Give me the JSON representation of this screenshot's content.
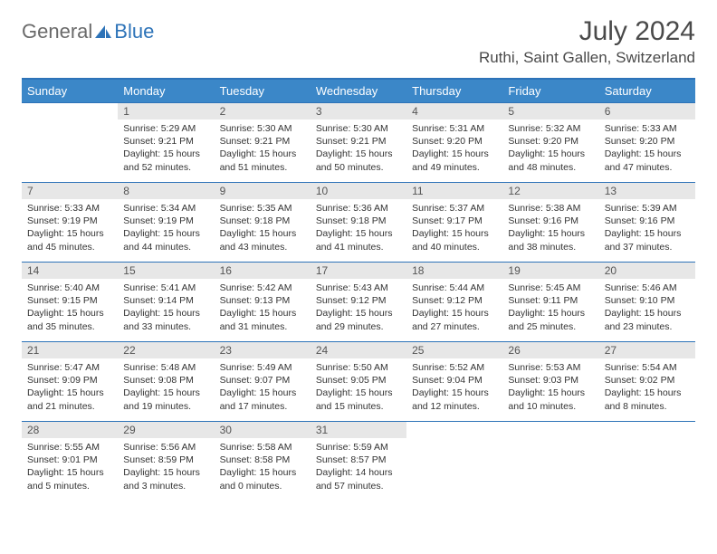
{
  "logo": {
    "part1": "General",
    "part2": "Blue"
  },
  "title": "July 2024",
  "location": "Ruthi, Saint Gallen, Switzerland",
  "day_headers": [
    "Sunday",
    "Monday",
    "Tuesday",
    "Wednesday",
    "Thursday",
    "Friday",
    "Saturday"
  ],
  "colors": {
    "header_bg": "#3b87c8",
    "header_border": "#2d73b8",
    "text": "#333333",
    "daynum_bg": "#e7e7e7"
  },
  "weeks": [
    [
      {
        "n": "",
        "sunrise": "",
        "sunset": "",
        "daylight": ""
      },
      {
        "n": "1",
        "sunrise": "Sunrise: 5:29 AM",
        "sunset": "Sunset: 9:21 PM",
        "daylight": "Daylight: 15 hours and 52 minutes."
      },
      {
        "n": "2",
        "sunrise": "Sunrise: 5:30 AM",
        "sunset": "Sunset: 9:21 PM",
        "daylight": "Daylight: 15 hours and 51 minutes."
      },
      {
        "n": "3",
        "sunrise": "Sunrise: 5:30 AM",
        "sunset": "Sunset: 9:21 PM",
        "daylight": "Daylight: 15 hours and 50 minutes."
      },
      {
        "n": "4",
        "sunrise": "Sunrise: 5:31 AM",
        "sunset": "Sunset: 9:20 PM",
        "daylight": "Daylight: 15 hours and 49 minutes."
      },
      {
        "n": "5",
        "sunrise": "Sunrise: 5:32 AM",
        "sunset": "Sunset: 9:20 PM",
        "daylight": "Daylight: 15 hours and 48 minutes."
      },
      {
        "n": "6",
        "sunrise": "Sunrise: 5:33 AM",
        "sunset": "Sunset: 9:20 PM",
        "daylight": "Daylight: 15 hours and 47 minutes."
      }
    ],
    [
      {
        "n": "7",
        "sunrise": "Sunrise: 5:33 AM",
        "sunset": "Sunset: 9:19 PM",
        "daylight": "Daylight: 15 hours and 45 minutes."
      },
      {
        "n": "8",
        "sunrise": "Sunrise: 5:34 AM",
        "sunset": "Sunset: 9:19 PM",
        "daylight": "Daylight: 15 hours and 44 minutes."
      },
      {
        "n": "9",
        "sunrise": "Sunrise: 5:35 AM",
        "sunset": "Sunset: 9:18 PM",
        "daylight": "Daylight: 15 hours and 43 minutes."
      },
      {
        "n": "10",
        "sunrise": "Sunrise: 5:36 AM",
        "sunset": "Sunset: 9:18 PM",
        "daylight": "Daylight: 15 hours and 41 minutes."
      },
      {
        "n": "11",
        "sunrise": "Sunrise: 5:37 AM",
        "sunset": "Sunset: 9:17 PM",
        "daylight": "Daylight: 15 hours and 40 minutes."
      },
      {
        "n": "12",
        "sunrise": "Sunrise: 5:38 AM",
        "sunset": "Sunset: 9:16 PM",
        "daylight": "Daylight: 15 hours and 38 minutes."
      },
      {
        "n": "13",
        "sunrise": "Sunrise: 5:39 AM",
        "sunset": "Sunset: 9:16 PM",
        "daylight": "Daylight: 15 hours and 37 minutes."
      }
    ],
    [
      {
        "n": "14",
        "sunrise": "Sunrise: 5:40 AM",
        "sunset": "Sunset: 9:15 PM",
        "daylight": "Daylight: 15 hours and 35 minutes."
      },
      {
        "n": "15",
        "sunrise": "Sunrise: 5:41 AM",
        "sunset": "Sunset: 9:14 PM",
        "daylight": "Daylight: 15 hours and 33 minutes."
      },
      {
        "n": "16",
        "sunrise": "Sunrise: 5:42 AM",
        "sunset": "Sunset: 9:13 PM",
        "daylight": "Daylight: 15 hours and 31 minutes."
      },
      {
        "n": "17",
        "sunrise": "Sunrise: 5:43 AM",
        "sunset": "Sunset: 9:12 PM",
        "daylight": "Daylight: 15 hours and 29 minutes."
      },
      {
        "n": "18",
        "sunrise": "Sunrise: 5:44 AM",
        "sunset": "Sunset: 9:12 PM",
        "daylight": "Daylight: 15 hours and 27 minutes."
      },
      {
        "n": "19",
        "sunrise": "Sunrise: 5:45 AM",
        "sunset": "Sunset: 9:11 PM",
        "daylight": "Daylight: 15 hours and 25 minutes."
      },
      {
        "n": "20",
        "sunrise": "Sunrise: 5:46 AM",
        "sunset": "Sunset: 9:10 PM",
        "daylight": "Daylight: 15 hours and 23 minutes."
      }
    ],
    [
      {
        "n": "21",
        "sunrise": "Sunrise: 5:47 AM",
        "sunset": "Sunset: 9:09 PM",
        "daylight": "Daylight: 15 hours and 21 minutes."
      },
      {
        "n": "22",
        "sunrise": "Sunrise: 5:48 AM",
        "sunset": "Sunset: 9:08 PM",
        "daylight": "Daylight: 15 hours and 19 minutes."
      },
      {
        "n": "23",
        "sunrise": "Sunrise: 5:49 AM",
        "sunset": "Sunset: 9:07 PM",
        "daylight": "Daylight: 15 hours and 17 minutes."
      },
      {
        "n": "24",
        "sunrise": "Sunrise: 5:50 AM",
        "sunset": "Sunset: 9:05 PM",
        "daylight": "Daylight: 15 hours and 15 minutes."
      },
      {
        "n": "25",
        "sunrise": "Sunrise: 5:52 AM",
        "sunset": "Sunset: 9:04 PM",
        "daylight": "Daylight: 15 hours and 12 minutes."
      },
      {
        "n": "26",
        "sunrise": "Sunrise: 5:53 AM",
        "sunset": "Sunset: 9:03 PM",
        "daylight": "Daylight: 15 hours and 10 minutes."
      },
      {
        "n": "27",
        "sunrise": "Sunrise: 5:54 AM",
        "sunset": "Sunset: 9:02 PM",
        "daylight": "Daylight: 15 hours and 8 minutes."
      }
    ],
    [
      {
        "n": "28",
        "sunrise": "Sunrise: 5:55 AM",
        "sunset": "Sunset: 9:01 PM",
        "daylight": "Daylight: 15 hours and 5 minutes."
      },
      {
        "n": "29",
        "sunrise": "Sunrise: 5:56 AM",
        "sunset": "Sunset: 8:59 PM",
        "daylight": "Daylight: 15 hours and 3 minutes."
      },
      {
        "n": "30",
        "sunrise": "Sunrise: 5:58 AM",
        "sunset": "Sunset: 8:58 PM",
        "daylight": "Daylight: 15 hours and 0 minutes."
      },
      {
        "n": "31",
        "sunrise": "Sunrise: 5:59 AM",
        "sunset": "Sunset: 8:57 PM",
        "daylight": "Daylight: 14 hours and 57 minutes."
      },
      {
        "n": "",
        "sunrise": "",
        "sunset": "",
        "daylight": ""
      },
      {
        "n": "",
        "sunrise": "",
        "sunset": "",
        "daylight": ""
      },
      {
        "n": "",
        "sunrise": "",
        "sunset": "",
        "daylight": ""
      }
    ]
  ]
}
